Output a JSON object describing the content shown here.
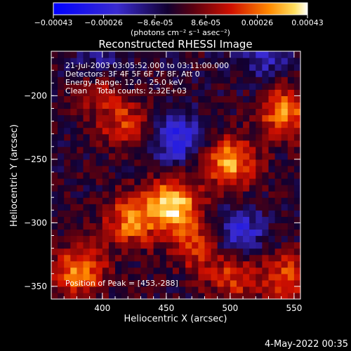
{
  "chart_data": {
    "type": "heatmap",
    "title": "Reconstructed RHESSI Image",
    "xlabel": "Heliocentric X (arcsec)",
    "ylabel": "Heliocentric Y (arcsec)",
    "xlim": [
      360,
      555
    ],
    "ylim": [
      -360,
      -165
    ],
    "x_ticks": [
      "400",
      "450",
      "500",
      "550"
    ],
    "y_ticks": [
      "-200",
      "-250",
      "-300",
      "-350"
    ],
    "colorbar": {
      "ticks": [
        "-0.00043",
        "-0.00026",
        "-8.6e-05",
        "8.6e-05",
        "0.00026",
        "0.00043"
      ],
      "unit": "(photons cm⁻² s⁻¹ asec⁻²)",
      "range": [
        -0.00043,
        0.00043
      ],
      "colormap": "blue-black-red-yellow-white"
    },
    "annotations": {
      "time_range": "21-Jul-2003 03:05:52.000 to 03:11:00.000",
      "detectors": "Detectors: 3F 4F 5F 6F 7F 8F, Att 0",
      "energy": "Energy Range: 12.0 - 25.0 keV",
      "clean": "Clean    Total counts: 2.32E+03",
      "peak": "Position of Peak = [453,-288]"
    },
    "peak_position": [
      453,
      -288
    ],
    "bright_sources": [
      {
        "x": 453,
        "y": -288,
        "intensity": 1.0
      },
      {
        "x": 498,
        "y": -255,
        "intensity": 0.8
      },
      {
        "x": 540,
        "y": -215,
        "intensity": 0.75
      },
      {
        "x": 420,
        "y": -300,
        "intensity": 0.7
      },
      {
        "x": 380,
        "y": -340,
        "intensity": 0.75
      },
      {
        "x": 540,
        "y": -345,
        "intensity": 0.55
      },
      {
        "x": 500,
        "y": -345,
        "intensity": 0.5
      },
      {
        "x": 415,
        "y": -225,
        "intensity": 0.5
      },
      {
        "x": 395,
        "y": -195,
        "intensity": 0.45
      },
      {
        "x": 470,
        "y": -320,
        "intensity": 0.5
      }
    ],
    "dark_regions": [
      {
        "x": 455,
        "y": -235,
        "intensity": -0.6
      },
      {
        "x": 505,
        "y": -310,
        "intensity": -0.5
      },
      {
        "x": 395,
        "y": -180,
        "intensity": -0.4
      },
      {
        "x": 525,
        "y": -170,
        "intensity": -0.4
      }
    ]
  },
  "footer": {
    "date": "4-May-2022 00:35"
  }
}
